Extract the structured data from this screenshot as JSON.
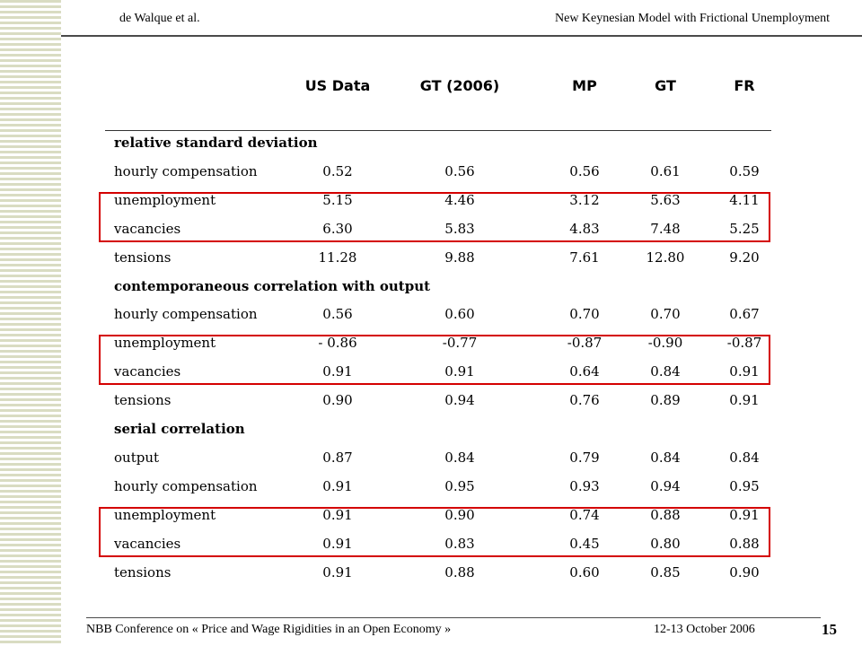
{
  "header": {
    "author": "de Walque et al.",
    "title": "New Keynesian Model  with Frictional Unemployment"
  },
  "table": {
    "columns": [
      "US Data",
      "GT  (2006)",
      "MP",
      "GT",
      "FR"
    ],
    "sections": [
      {
        "title": "relative standard deviation",
        "rows": [
          {
            "label": "hourly compensation",
            "values": [
              "0.52",
              "0.56",
              "0.56",
              "0.61",
              "0.59"
            ]
          },
          {
            "label": "unemployment",
            "values": [
              "5.15",
              "4.46",
              "3.12",
              "5.63",
              "4.11"
            ]
          },
          {
            "label": "vacancies",
            "values": [
              "6.30",
              "5.83",
              "4.83",
              "7.48",
              "5.25"
            ]
          },
          {
            "label": "tensions",
            "values": [
              "11.28",
              "9.88",
              "7.61",
              "12.80",
              "9.20"
            ]
          }
        ]
      },
      {
        "title": "contemporaneous correlation with output",
        "rows": [
          {
            "label": "hourly compensation",
            "values": [
              "0.56",
              "0.60",
              "0.70",
              "0.70",
              "0.67"
            ]
          },
          {
            "label": "unemployment",
            "values": [
              "- 0.86",
              "-0.77",
              "-0.87",
              "-0.90",
              "-0.87"
            ]
          },
          {
            "label": "vacancies",
            "values": [
              "0.91",
              "0.91",
              "0.64",
              "0.84",
              "0.91"
            ]
          },
          {
            "label": "tensions",
            "values": [
              "0.90",
              "0.94",
              "0.76",
              "0.89",
              "0.91"
            ]
          }
        ]
      },
      {
        "title": "serial correlation",
        "rows": [
          {
            "label": "output",
            "values": [
              "0.87",
              "0.84",
              "0.79",
              "0.84",
              "0.84"
            ]
          },
          {
            "label": "hourly compensation",
            "values": [
              "0.91",
              "0.95",
              "0.93",
              "0.94",
              "0.95"
            ]
          },
          {
            "label": "unemployment",
            "values": [
              "0.91",
              "0.90",
              "0.74",
              "0.88",
              "0.91"
            ]
          },
          {
            "label": "vacancies",
            "values": [
              "0.91",
              "0.83",
              "0.45",
              "0.80",
              "0.88"
            ]
          },
          {
            "label": "tensions",
            "values": [
              "0.91",
              "0.88",
              "0.60",
              "0.85",
              "0.90"
            ]
          }
        ]
      }
    ],
    "highlight_color": "#d40000"
  },
  "footer": {
    "conference": "NBB Conference on « Price and Wage Rigidities in an Open Economy »",
    "date": "12-13 October 2006",
    "page": "15"
  }
}
